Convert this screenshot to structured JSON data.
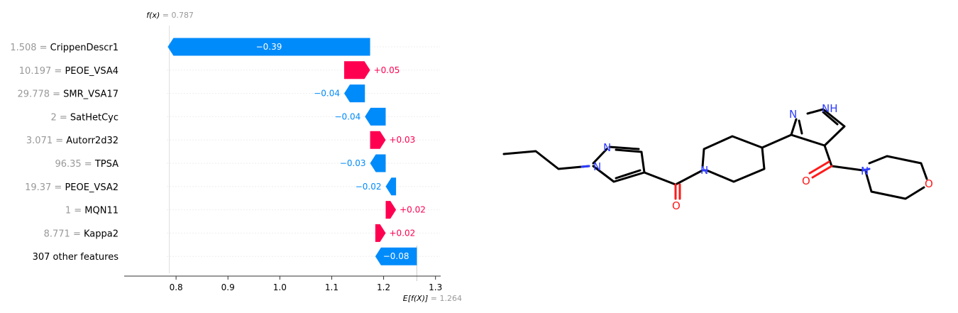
{
  "chart_data": {
    "type": "bar",
    "subtype": "waterfall",
    "fx_label": "f(x)",
    "fx_value": "0.787",
    "fx": 0.787,
    "base_label": "E[f(X)]",
    "base_value_text": "1.264",
    "base_value": 1.264,
    "features": [
      {
        "value": "1.508",
        "name": "CrippenDescr1",
        "contribution": -0.39,
        "label": "−0.39"
      },
      {
        "value": "10.197",
        "name": "PEOE_VSA4",
        "contribution": 0.05,
        "label": "+0.05"
      },
      {
        "value": "29.778",
        "name": "SMR_VSA17",
        "contribution": -0.04,
        "label": "−0.04"
      },
      {
        "value": "2",
        "name": "SatHetCyc",
        "contribution": -0.04,
        "label": "−0.04"
      },
      {
        "value": "3.071",
        "name": "Autorr2d32",
        "contribution": 0.03,
        "label": "+0.03"
      },
      {
        "value": "96.35",
        "name": "TPSA",
        "contribution": -0.03,
        "label": "−0.03"
      },
      {
        "value": "19.37",
        "name": "PEOE_VSA2",
        "contribution": -0.02,
        "label": "−0.02"
      },
      {
        "value": "1",
        "name": "MQN11",
        "contribution": 0.02,
        "label": "+0.02"
      },
      {
        "value": "8.771",
        "name": "Kappa2",
        "contribution": 0.02,
        "label": "+0.02"
      },
      {
        "value": "",
        "name": "307 other features",
        "contribution": -0.08,
        "label": "−0.08"
      }
    ],
    "xticks": [
      "0.8",
      "0.9",
      "1.0",
      "1.1",
      "1.2",
      "1.3"
    ],
    "xlim": [
      0.7,
      1.31
    ],
    "colors": {
      "positive": "#ff0051",
      "negative": "#008bfb",
      "muted": "#999999",
      "text": "#000000"
    }
  },
  "molecule": {
    "atom_labels": [
      "N",
      "N",
      "N",
      "N",
      "NH",
      "N",
      "O",
      "O",
      "O"
    ],
    "colors": {
      "nitrogen": "#2d3cff",
      "oxygen": "#ff1a1a",
      "carbon": "#000000"
    }
  }
}
